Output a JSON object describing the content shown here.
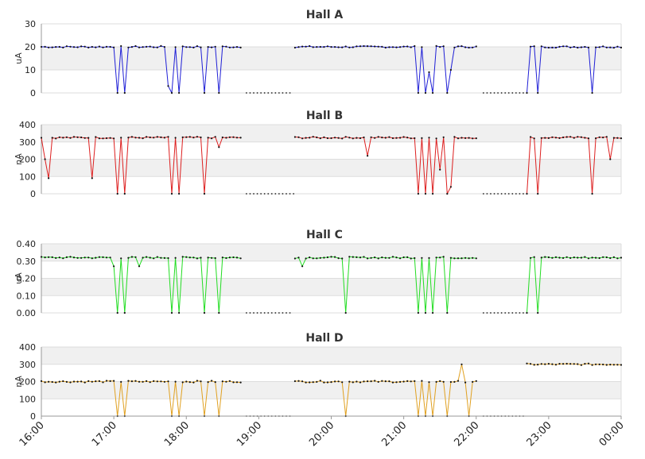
{
  "chart_data": [
    {
      "type": "line",
      "title": "Hall A",
      "ylabel": "uA",
      "ylim": [
        0,
        30
      ],
      "yticks": [
        "0",
        "10",
        "20",
        "30"
      ],
      "color": "#1f1fd6",
      "base": 20,
      "values_hint": "approx. 20 with drops to 0 and an offline gap",
      "dips": [
        [
          17.07,
          0
        ],
        [
          17.13,
          0
        ],
        [
          17.77,
          3
        ],
        [
          17.8,
          0
        ],
        [
          17.9,
          0
        ],
        [
          18.25,
          0
        ],
        [
          18.45,
          0
        ],
        [
          21.18,
          0
        ],
        [
          21.28,
          0
        ],
        [
          21.33,
          9
        ],
        [
          21.4,
          0
        ],
        [
          21.6,
          0
        ],
        [
          21.65,
          10
        ],
        [
          22.72,
          0
        ],
        [
          22.83,
          0
        ],
        [
          23.62,
          0
        ]
      ],
      "gaps": [
        [
          18.78,
          19.48
        ],
        [
          20.18,
          20.2
        ],
        [
          22.05,
          22.7
        ]
      ]
    },
    {
      "type": "line",
      "title": "Hall B",
      "ylabel": "nA",
      "ylim": [
        0,
        400
      ],
      "yticks": [
        "0",
        "100",
        "200",
        "300",
        "400"
      ],
      "color": "#dd1f1f",
      "base": 325,
      "dips": [
        [
          16.05,
          200
        ],
        [
          16.12,
          90
        ],
        [
          16.7,
          90
        ],
        [
          17.07,
          0
        ],
        [
          17.13,
          0
        ],
        [
          17.78,
          0
        ],
        [
          17.9,
          0
        ],
        [
          18.25,
          0
        ],
        [
          18.45,
          270
        ],
        [
          20.5,
          220
        ],
        [
          21.18,
          0
        ],
        [
          21.28,
          0
        ],
        [
          21.4,
          0
        ],
        [
          21.52,
          140
        ],
        [
          21.6,
          0
        ],
        [
          21.65,
          40
        ],
        [
          22.72,
          0
        ],
        [
          22.83,
          0
        ],
        [
          23.62,
          0
        ],
        [
          23.85,
          200
        ]
      ],
      "gaps": [
        [
          18.78,
          19.5
        ],
        [
          22.05,
          22.7
        ]
      ]
    },
    {
      "type": "line",
      "title": "Hall C",
      "ylabel": "uA",
      "ylim": [
        0,
        0.4
      ],
      "yticks": [
        "0.00",
        "0.10",
        "0.20",
        "0.30",
        "0.40"
      ],
      "color": "#22dd22",
      "base": 0.32,
      "dips": [
        [
          17.0,
          0.27
        ],
        [
          17.07,
          0
        ],
        [
          17.13,
          0
        ],
        [
          17.33,
          0.27
        ],
        [
          17.78,
          0
        ],
        [
          17.9,
          0
        ],
        [
          18.25,
          0
        ],
        [
          18.45,
          0
        ],
        [
          19.6,
          0.27
        ],
        [
          20.18,
          0
        ],
        [
          21.18,
          0
        ],
        [
          21.28,
          0
        ],
        [
          21.4,
          0
        ],
        [
          21.6,
          0
        ],
        [
          22.72,
          0
        ],
        [
          22.83,
          0
        ]
      ],
      "gaps": [
        [
          18.78,
          19.48
        ],
        [
          22.05,
          22.7
        ]
      ]
    },
    {
      "type": "line",
      "title": "Hall D",
      "ylabel": "nA",
      "ylim": [
        0,
        400
      ],
      "yticks": [
        "0",
        "100",
        "200",
        "300",
        "400"
      ],
      "color": "#e0a020",
      "base": 200,
      "dips": [
        [
          17.07,
          0
        ],
        [
          17.13,
          0
        ],
        [
          17.78,
          0
        ],
        [
          17.9,
          0
        ],
        [
          18.25,
          0
        ],
        [
          18.45,
          0
        ],
        [
          20.18,
          0
        ],
        [
          21.18,
          0
        ],
        [
          21.28,
          0
        ],
        [
          21.4,
          0
        ],
        [
          21.6,
          0
        ],
        [
          21.82,
          300
        ],
        [
          21.88,
          0
        ]
      ],
      "gaps": [
        [
          18.78,
          19.48
        ],
        [
          22.05,
          22.7
        ]
      ],
      "late_base": 300
    }
  ],
  "x_ticks": [
    "16:00",
    "17:00",
    "18:00",
    "19:00",
    "20:00",
    "21:00",
    "22:00",
    "23:00",
    "00:00"
  ],
  "x_range": [
    "16:00",
    "00:00"
  ]
}
